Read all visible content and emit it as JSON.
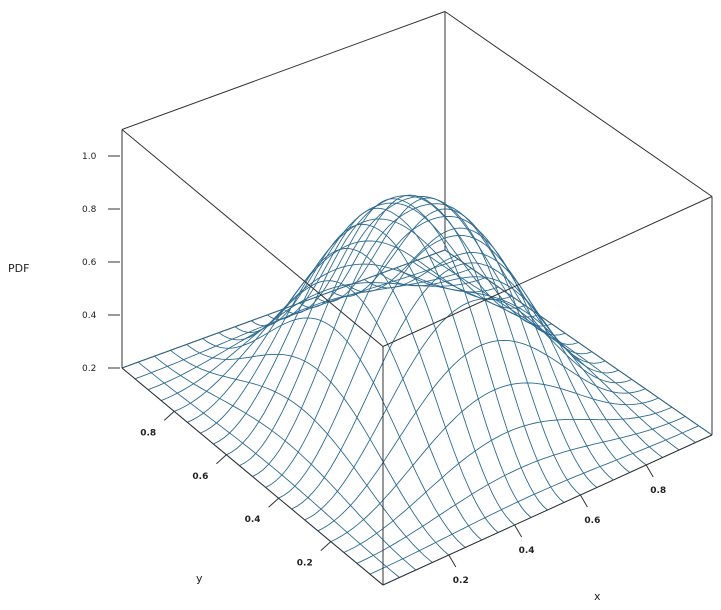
{
  "chart_data": {
    "type": "surface",
    "title": "",
    "xlabel": "x",
    "ylabel": "y",
    "zlabel": "PDF",
    "xlim": [
      0,
      1
    ],
    "ylim": [
      0,
      1
    ],
    "zlim": [
      0.2,
      1.1
    ],
    "x_ticks": [
      0.2,
      0.4,
      0.6,
      0.8
    ],
    "x_tick_labels": [
      "0.2",
      "0.4",
      "0.6",
      "0.8"
    ],
    "y_ticks": [
      0.2,
      0.4,
      0.6,
      0.8
    ],
    "y_tick_labels": [
      "0.2",
      "0.4",
      "0.6",
      "0.8"
    ],
    "z_ticks": [
      0.2,
      0.4,
      0.6,
      0.8,
      1.0
    ],
    "z_tick_labels": [
      "0.2",
      "0.4",
      "0.6",
      "0.8",
      "1.0"
    ],
    "grid_n": 21,
    "surface": "z = 0.2 + 0.9 * sin(pi x)^2 * sin(pi y)^2 - 0.06 * shallow central dip",
    "line_color": "#2f6b8f",
    "box_color": "#333333",
    "grid": false,
    "legend": "none"
  }
}
